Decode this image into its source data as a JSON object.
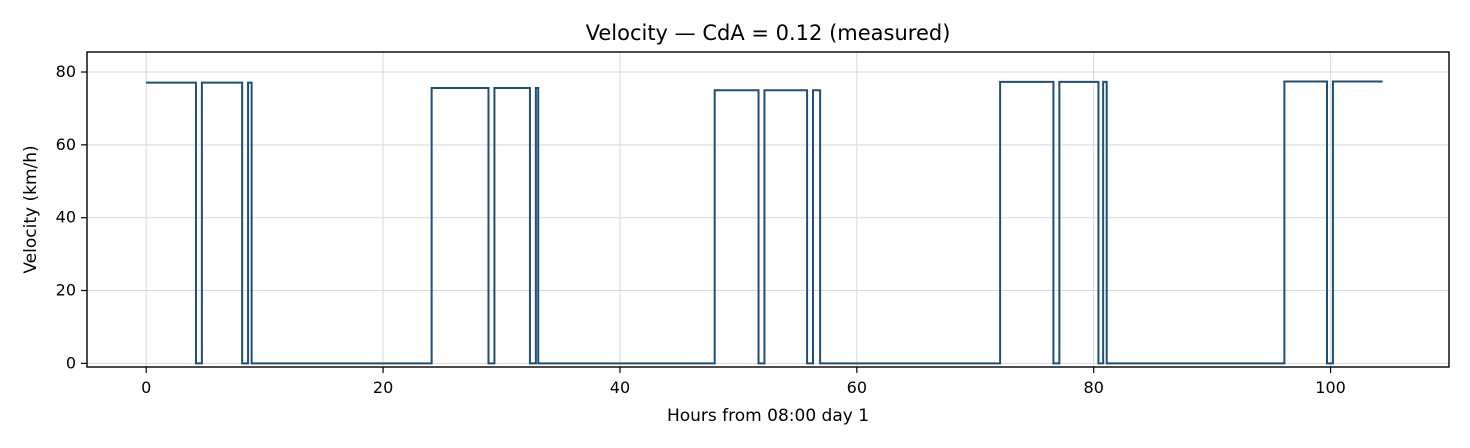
{
  "chart_data": {
    "type": "line",
    "title": "Velocity — CdA = 0.12 (measured)",
    "xlabel": "Hours from 08:00 day 1",
    "ylabel": "Velocity (km/h)",
    "xlim": [
      -5,
      110
    ],
    "ylim": [
      -1,
      85.5
    ],
    "x_ticks": [
      0,
      20,
      40,
      60,
      80,
      100
    ],
    "y_ticks": [
      0,
      20,
      40,
      60,
      80
    ],
    "grid": true,
    "line_color": "#1f4e79",
    "series": [
      {
        "x": [
          0,
          4.2,
          4.2,
          4.7,
          4.7,
          8.1,
          8.1,
          8.6,
          8.6,
          8.9,
          8.9,
          24.1,
          24.1,
          28.9,
          28.9,
          29.4,
          29.4,
          32.4,
          32.4,
          32.9,
          32.9,
          33.1,
          33.1,
          48.0,
          48.0,
          51.7,
          51.7,
          52.2,
          52.2,
          55.8,
          55.8,
          56.3,
          56.3,
          56.9,
          56.9,
          72.1,
          72.1,
          76.6,
          76.6,
          77.1,
          77.1,
          80.4,
          80.4,
          80.8,
          80.8,
          81.1,
          81.1,
          96.1,
          96.1,
          99.7,
          99.7,
          100.2,
          100.2,
          104.4
        ],
        "y": [
          77.1,
          77.1,
          0,
          0,
          77.1,
          77.1,
          0,
          0,
          77.1,
          77.1,
          0,
          0,
          75.6,
          75.6,
          0,
          0,
          75.6,
          75.6,
          0,
          0,
          75.6,
          75.6,
          0,
          0,
          75.0,
          75.0,
          0,
          0,
          75.0,
          75.0,
          0,
          0,
          75.0,
          75.0,
          0,
          0,
          77.3,
          77.3,
          0,
          0,
          77.3,
          77.3,
          0,
          0,
          77.3,
          77.3,
          0,
          0,
          77.4,
          77.4,
          0,
          0,
          77.4,
          77.4
        ]
      }
    ]
  }
}
